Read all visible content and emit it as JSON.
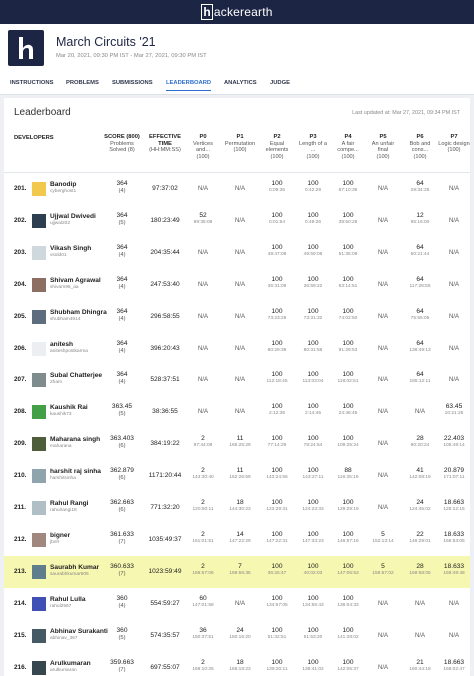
{
  "top_bar": {
    "logo": "hackerearth"
  },
  "header": {
    "title": "March Circuits '21",
    "dates": "Mar 20, 2021, 09:30 PM IST - Mar 27, 2021, 09:30 PM IST"
  },
  "tabs": [
    "INSTRUCTIONS",
    "PROBLEMS",
    "SUBMISSIONS",
    "LEADERBOARD",
    "ANALYTICS",
    "JUDGE"
  ],
  "active_tab": "LEADERBOARD",
  "leaderboard": {
    "title": "Leaderboard",
    "updated": "Last updated at: Mar 27, 2021, 09:34 PM IST",
    "columns": [
      {
        "label": "DEVELOPERS"
      },
      {
        "label": "SCORE (800)",
        "sub": "Problems Solved (8)"
      },
      {
        "label": "EFFECTIVE TIME",
        "sub": "(HH:MM:SS)"
      },
      {
        "label": "P0",
        "sub": "Vertices and...",
        "max": "(100)"
      },
      {
        "label": "P1",
        "sub": "Permutation",
        "max": "(100)"
      },
      {
        "label": "P2",
        "sub": "Equal elements",
        "max": "(100)"
      },
      {
        "label": "P3",
        "sub": "Length of a ...",
        "max": "(100)"
      },
      {
        "label": "P4",
        "sub": "A fair compe...",
        "max": "(100)"
      },
      {
        "label": "P5",
        "sub": "An unfair final",
        "max": "(100)"
      },
      {
        "label": "P6",
        "sub": "Bob and cons...",
        "max": "(100)"
      },
      {
        "label": "P7",
        "sub": "Logic design",
        "max": "(100)"
      }
    ],
    "rows": [
      {
        "rank": "201.",
        "name": "Banodip",
        "handle": "cyberghost1",
        "score": "364",
        "solved": "(4)",
        "time": "97:37:02",
        "problems": [
          "N/A",
          "N/A",
          {
            "score": "100",
            "time": "0:09:36"
          },
          {
            "score": "100",
            "time": "0:42:29"
          },
          {
            "score": "100",
            "time": "67:10:36"
          },
          "N/A",
          {
            "score": "64",
            "time": "29:34:25"
          },
          "N/A"
        ]
      },
      {
        "rank": "202.",
        "name": "Ujjwal Dwivedi",
        "handle": "ujjwal202",
        "score": "364",
        "solved": "(5)",
        "time": "180:23:49",
        "problems": [
          {
            "score": "52",
            "time": "99:35:09"
          },
          "N/A",
          {
            "score": "100",
            "time": "0:01:54"
          },
          {
            "score": "100",
            "time": "0:49:26"
          },
          {
            "score": "100",
            "time": "39:50:28"
          },
          "N/A",
          {
            "score": "12",
            "time": "95:16:00"
          },
          "N/A"
        ]
      },
      {
        "rank": "203.",
        "name": "Vikash Singh",
        "handle": "vsold01",
        "score": "364",
        "solved": "(4)",
        "time": "204:35:44",
        "problems": [
          "N/A",
          "N/A",
          {
            "score": "100",
            "time": "49:47:08"
          },
          {
            "score": "100",
            "time": "49:59:08"
          },
          {
            "score": "100",
            "time": "51:35:09"
          },
          "N/A",
          {
            "score": "64",
            "time": "50:21:44"
          },
          "N/A"
        ]
      },
      {
        "rank": "204.",
        "name": "Shivam Agrawal",
        "handle": "shivam96_aa",
        "score": "364",
        "solved": "(4)",
        "time": "247:53:40",
        "problems": [
          "N/A",
          "N/A",
          {
            "score": "100",
            "time": "36:31:09"
          },
          {
            "score": "100",
            "time": "36:59:22"
          },
          {
            "score": "100",
            "time": "63:14:51"
          },
          "N/A",
          {
            "score": "64",
            "time": "117:28:55"
          },
          "N/A"
        ]
      },
      {
        "rank": "205.",
        "name": "Shubham Dhingra",
        "handle": "shubham4914",
        "score": "364",
        "solved": "(4)",
        "time": "296:58:55",
        "problems": [
          "N/A",
          "N/A",
          {
            "score": "100",
            "time": "73:23:28"
          },
          {
            "score": "100",
            "time": "73:31:32"
          },
          {
            "score": "100",
            "time": "74:02:50"
          },
          "N/A",
          {
            "score": "64",
            "time": "75:55:05"
          },
          "N/A"
        ]
      },
      {
        "rank": "206.",
        "name": "anitesh",
        "handle": "aniteshpostkarma",
        "score": "364",
        "solved": "(4)",
        "time": "396:20:43",
        "problems": [
          "N/A",
          "N/A",
          {
            "score": "100",
            "time": "80:29:39"
          },
          {
            "score": "100",
            "time": "80:31:58"
          },
          {
            "score": "100",
            "time": "91:29:53"
          },
          "N/A",
          {
            "score": "64",
            "time": "138:49:13"
          },
          "N/A"
        ]
      },
      {
        "rank": "207.",
        "name": "Subal Chatterjee",
        "handle": "2ham",
        "score": "364",
        "solved": "(4)",
        "time": "528:37:51",
        "problems": [
          "N/A",
          "N/A",
          {
            "score": "100",
            "time": "112:18:45"
          },
          {
            "score": "100",
            "time": "113:03:04"
          },
          {
            "score": "100",
            "time": "118:02:51"
          },
          "N/A",
          {
            "score": "64",
            "time": "185:12:11"
          },
          "N/A"
        ]
      },
      {
        "rank": "208.",
        "name": "Kaushik Rai",
        "handle": "kaushik73",
        "score": "363.45",
        "solved": "(5)",
        "time": "38:36:55",
        "problems": [
          "N/A",
          "N/A",
          {
            "score": "100",
            "time": "2:12:36"
          },
          {
            "score": "100",
            "time": "2:14:45"
          },
          {
            "score": "100",
            "time": "24:46:45"
          },
          "N/A",
          "N/A",
          {
            "score": "63.45",
            "time": "10:21:26"
          }
        ]
      },
      {
        "rank": "209.",
        "name": "Maharana singh",
        "handle": "maharana",
        "score": "363.403",
        "solved": "(6)",
        "time": "384:19:22",
        "problems": [
          {
            "score": "2",
            "time": "97:44:08"
          },
          {
            "score": "11",
            "time": "165:25:29"
          },
          {
            "score": "100",
            "time": "77:14:29"
          },
          {
            "score": "100",
            "time": "78:24:54"
          },
          {
            "score": "100",
            "time": "109:25:24"
          },
          "N/A",
          {
            "score": "28",
            "time": "90:20:24"
          },
          {
            "score": "22.403",
            "time": "105:49:14"
          }
        ]
      },
      {
        "rank": "210.",
        "name": "harshit raj sinha",
        "handle": "harshitsinha",
        "score": "362.879",
        "solved": "(6)",
        "time": "1171:20:44",
        "problems": [
          {
            "score": "2",
            "time": "143:30:40"
          },
          {
            "score": "11",
            "time": "162:26:59"
          },
          {
            "score": "100",
            "time": "143:24:56"
          },
          {
            "score": "100",
            "time": "143:27:11"
          },
          {
            "score": "88",
            "time": "116:25:19"
          },
          "N/A",
          {
            "score": "41",
            "time": "142:08:19"
          },
          {
            "score": "20.879",
            "time": "171:07:11"
          }
        ]
      },
      {
        "rank": "211.",
        "name": "Rahul Rangi",
        "handle": "rahulrangi18",
        "score": "362.663",
        "solved": "(6)",
        "time": "771:32:20",
        "problems": [
          {
            "score": "2",
            "time": "120:50:11"
          },
          {
            "score": "18",
            "time": "144:30:23"
          },
          {
            "score": "100",
            "time": "123:29:31"
          },
          {
            "score": "100",
            "time": "124:23:33"
          },
          {
            "score": "100",
            "time": "129:29:19"
          },
          "N/A",
          {
            "score": "24",
            "time": "124:45:02"
          },
          {
            "score": "18.663",
            "time": "125:12:15"
          }
        ]
      },
      {
        "rank": "212.",
        "name": "bigner",
        "handle": "jbnfr",
        "score": "361.633",
        "solved": "(7)",
        "time": "1035:49:37",
        "problems": [
          {
            "score": "2",
            "time": "161:01:51"
          },
          {
            "score": "14",
            "time": "147:22:29"
          },
          {
            "score": "100",
            "time": "147:22:31"
          },
          {
            "score": "100",
            "time": "147:33:23"
          },
          {
            "score": "100",
            "time": "146:57:16"
          },
          {
            "score": "5",
            "time": "152:13:14"
          },
          {
            "score": "22",
            "time": "146:29:01"
          },
          {
            "score": "18.633",
            "time": "166:53:05"
          }
        ]
      },
      {
        "rank": "213.",
        "name": "Saurabh Kumar",
        "handle": "saurabhkumar605",
        "score": "360.633",
        "solved": "(7)",
        "time": "1023:59:49",
        "highlighted": true,
        "problems": [
          {
            "score": "2",
            "time": "159:57:06"
          },
          {
            "score": "7",
            "time": "159:56:35"
          },
          {
            "score": "100",
            "time": "36:26:47"
          },
          {
            "score": "100",
            "time": "40:02:03"
          },
          {
            "score": "100",
            "time": "147:06:53"
          },
          {
            "score": "5",
            "time": "159:57:02"
          },
          {
            "score": "28",
            "time": "159:58:05"
          },
          {
            "score": "18.633",
            "time": "159:49:48"
          }
        ]
      },
      {
        "rank": "214.",
        "name": "Rahul Lulla",
        "handle": "rahul2567",
        "score": "360",
        "solved": "(4)",
        "time": "554:59:27",
        "problems": [
          {
            "score": "60",
            "time": "147:01:58"
          },
          "N/A",
          {
            "score": "100",
            "time": "134:57:05"
          },
          {
            "score": "100",
            "time": "134:55:43"
          },
          {
            "score": "100",
            "time": "136:04:33"
          },
          "N/A",
          "N/A",
          "N/A"
        ]
      },
      {
        "rank": "215.",
        "name": "Abhinav Surakanti",
        "handle": "abhinav_367",
        "score": "360",
        "solved": "(5)",
        "time": "574:35:57",
        "problems": [
          {
            "score": "36",
            "time": "150:37:51"
          },
          {
            "score": "24",
            "time": "150:16:20"
          },
          {
            "score": "100",
            "time": "51:32:51"
          },
          {
            "score": "100",
            "time": "51:53:20"
          },
          {
            "score": "100",
            "time": "141:28:02"
          },
          "N/A",
          "N/A",
          "N/A"
        ]
      },
      {
        "rank": "216.",
        "name": "Arulkumaran",
        "handle": "arulkumaran",
        "score": "359.663",
        "solved": "(7)",
        "time": "697:55:07",
        "problems": [
          {
            "score": "2",
            "time": "169:10:25"
          },
          {
            "score": "18",
            "time": "165:18:23"
          },
          {
            "score": "100",
            "time": "139:20:11"
          },
          {
            "score": "100",
            "time": "139:41:02"
          },
          {
            "score": "100",
            "time": "142:05:37"
          },
          "N/A",
          {
            "score": "21",
            "time": "160:44:18"
          },
          {
            "score": "18.663",
            "time": "168:02:47"
          }
        ]
      }
    ]
  }
}
